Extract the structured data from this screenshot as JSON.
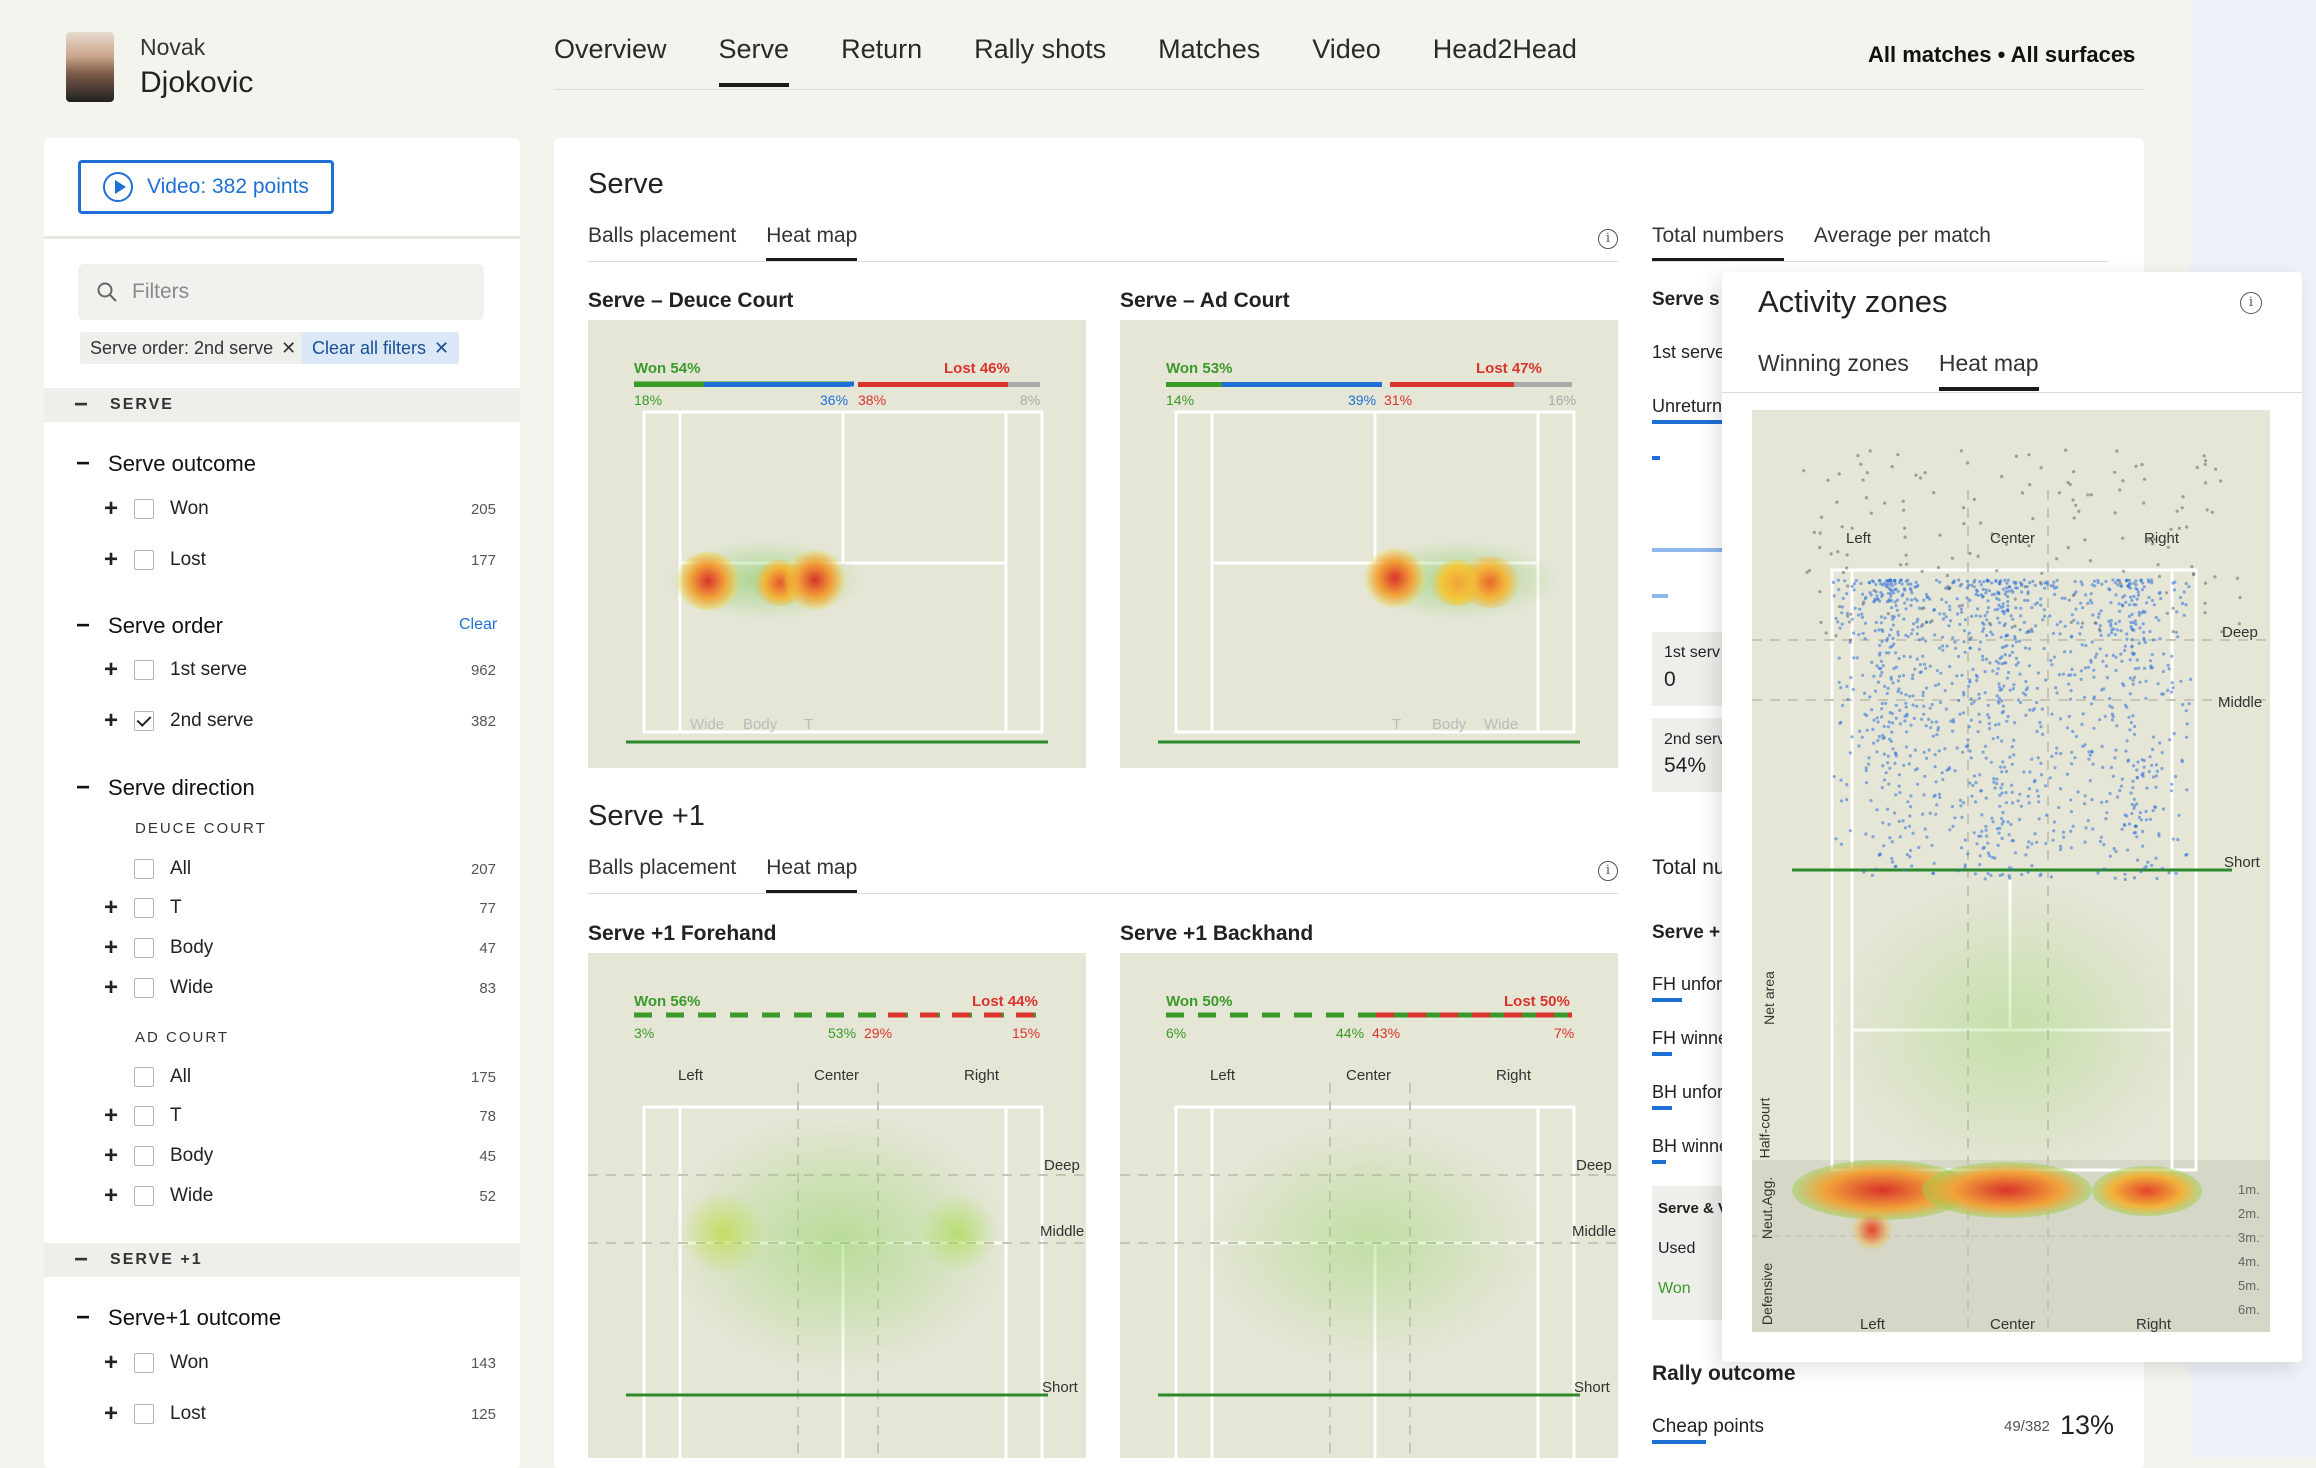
{
  "player": {
    "first_name": "Novak",
    "last_name": "Djokovic"
  },
  "nav": {
    "tabs": [
      "Overview",
      "Serve",
      "Return",
      "Rally shots",
      "Matches",
      "Video",
      "Head2Head"
    ],
    "active": "Serve",
    "scope": "All matches • All surfaces"
  },
  "sidebar": {
    "video_button": "Video: 382 points",
    "filter_placeholder": "Filters",
    "chips": [
      "Serve order: 2nd serve",
      "Clear all filters"
    ],
    "serve_section": "SERVE",
    "serve_outcome": {
      "title": "Serve outcome",
      "items": [
        {
          "label": "Won",
          "count": "205"
        },
        {
          "label": "Lost",
          "count": "177"
        }
      ]
    },
    "serve_order": {
      "title": "Serve order",
      "clear": "Clear",
      "items": [
        {
          "label": "1st serve",
          "count": "962"
        },
        {
          "label": "2nd serve",
          "count": "382"
        }
      ]
    },
    "serve_direction": {
      "title": "Serve direction",
      "deuce": {
        "label": "DEUCE COURT",
        "items": [
          {
            "label": "All",
            "count": "207"
          },
          {
            "label": "T",
            "count": "77"
          },
          {
            "label": "Body",
            "count": "47"
          },
          {
            "label": "Wide",
            "count": "83"
          }
        ]
      },
      "ad": {
        "label": "AD COURT",
        "items": [
          {
            "label": "All",
            "count": "175"
          },
          {
            "label": "T",
            "count": "78"
          },
          {
            "label": "Body",
            "count": "45"
          },
          {
            "label": "Wide",
            "count": "52"
          }
        ]
      }
    },
    "serve1_section": "SERVE +1",
    "serve1_outcome": {
      "title": "Serve+1 outcome",
      "items": [
        {
          "label": "Won",
          "count": "143"
        },
        {
          "label": "Lost",
          "count": "125"
        }
      ]
    }
  },
  "main": {
    "serve_title": "Serve",
    "serve_tabs": [
      "Balls placement",
      "Heat map"
    ],
    "stats_tabs": [
      "Total numbers",
      "Average per match"
    ],
    "deuce": {
      "title": "Serve – Deuce Court",
      "won": "Won 54%",
      "lost": "Lost 46%",
      "p1": "18%",
      "p2": "36%",
      "p3": "38%",
      "p4": "8%",
      "zones": [
        "Wide",
        "Body",
        "T"
      ]
    },
    "ad": {
      "title": "Serve – Ad Court",
      "won": "Won 53%",
      "lost": "Lost 47%",
      "p1": "14%",
      "p2": "39%",
      "p3": "31%",
      "p4": "16%",
      "zones": [
        "T",
        "Body",
        "Wide"
      ]
    },
    "serve1_title": "Serve +1",
    "serve1_tabs": [
      "Balls placement",
      "Heat map"
    ],
    "fh": {
      "title": "Serve +1 Forehand",
      "won": "Won 56%",
      "lost": "Lost 44%",
      "p1": "3%",
      "p2": "53%",
      "p3": "29%",
      "p4": "15%"
    },
    "bh": {
      "title": "Serve +1 Backhand",
      "won": "Won 50%",
      "lost": "Lost 50%",
      "p1": "6%",
      "p2": "44%",
      "p3": "43%",
      "p4": "7%"
    },
    "court_labels": {
      "left": "Left",
      "center": "Center",
      "right": "Right",
      "deep": "Deep",
      "middle": "Middle",
      "short": "Short"
    },
    "stats": {
      "serve_s": "Serve s",
      "first_serve": "1st serve",
      "unreturn": "Unreturn",
      "box1_label": "1st serv",
      "box1_value": "0",
      "box2_label": "2nd serv",
      "box2_value": "54%",
      "total_nu": "Total nu",
      "serve_plus": "Serve +",
      "fh_unforc": "FH unforc",
      "fh_winne": "FH winne",
      "bh_unforc": "BH unforc",
      "bh_winne": "BH winne",
      "serve_v": "Serve & V",
      "used": "Used",
      "won": "Won",
      "rally_outcome": "Rally outcome",
      "cheap_points": "Cheap points",
      "cheap_frac": "49/382",
      "cheap_pct": "13%"
    }
  },
  "activity": {
    "title": "Activity zones",
    "tabs": [
      "Winning zones",
      "Heat map"
    ],
    "labels": {
      "left": "Left",
      "center": "Center",
      "right": "Right",
      "deep": "Deep",
      "middle": "Middle",
      "short": "Short"
    },
    "side_labels": [
      "Net area",
      "Half-court",
      "Neut.Agg.",
      "Defensive"
    ],
    "depth": [
      "1m.",
      "2m.",
      "3m.",
      "4m.",
      "5m.",
      "6m."
    ]
  },
  "colors": {
    "accent": "#1e6fd6",
    "won": "#3a9a2a",
    "lost": "#d9342b"
  }
}
